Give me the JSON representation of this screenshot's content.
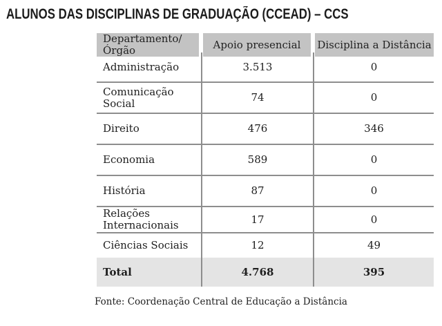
{
  "title": "ALUNOS DAS DISCIPLINAS DE GRADUAÇÃO (CCEAD) – CCS",
  "table": {
    "columns": {
      "dept": "Departamento/Órgão",
      "presencial": "Apoio presencial",
      "distancia": "Disciplina a Distância"
    },
    "rows": [
      {
        "dept": "Administração",
        "presencial": "3.513",
        "distancia": "0"
      },
      {
        "dept": "Comunicação Social",
        "presencial": "74",
        "distancia": "0"
      },
      {
        "dept": "Direito",
        "presencial": "476",
        "distancia": "346"
      },
      {
        "dept": "Economia",
        "presencial": "589",
        "distancia": "0"
      },
      {
        "dept": "História",
        "presencial": "87",
        "distancia": "0"
      },
      {
        "dept": "Relações Internacionais",
        "presencial": "17",
        "distancia": "0"
      },
      {
        "dept": "Ciências Sociais",
        "presencial": "12",
        "distancia": "49"
      }
    ],
    "total": {
      "dept": "Total",
      "presencial": "4.768",
      "distancia": "395"
    }
  },
  "footer": "Fonte: Coordenação Central de Educação a Distância",
  "colors": {
    "header_bg": "#c3c3c3",
    "total_bg": "#e4e4e4",
    "grid_line": "#8d8d8d",
    "text": "#1e1e1e"
  }
}
